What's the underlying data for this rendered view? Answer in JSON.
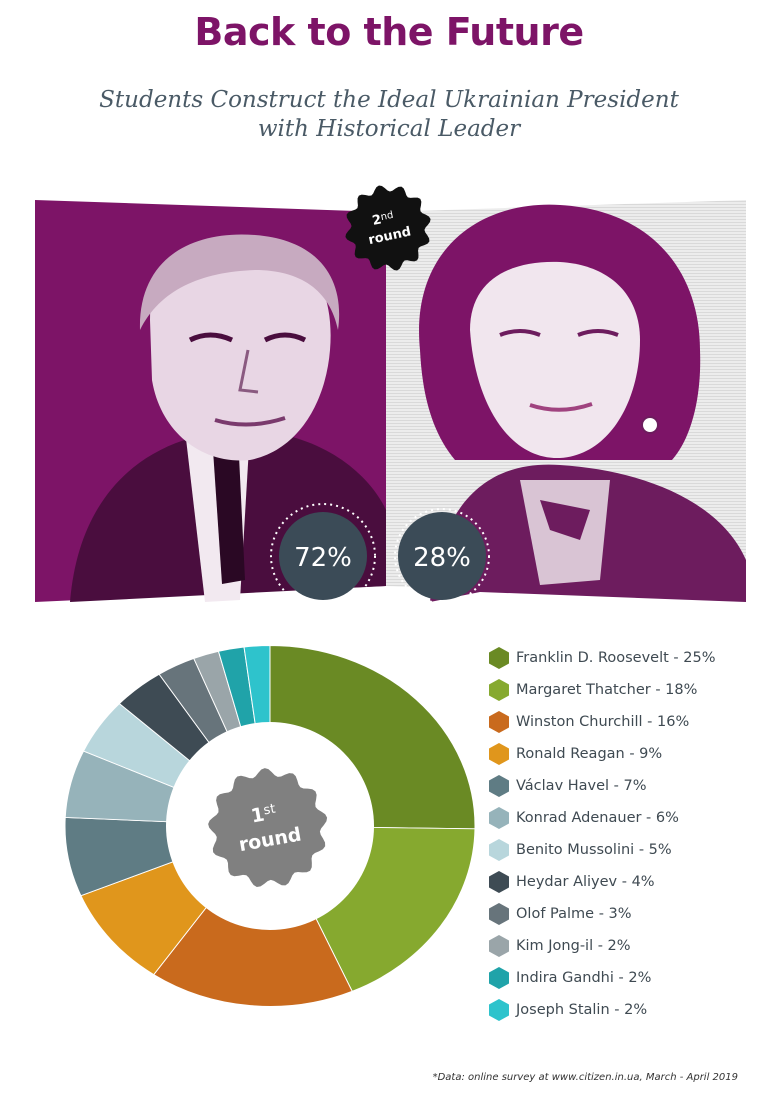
{
  "header": {
    "title": "Back to the Future",
    "subtitle_line1": "Students Construct the Ideal Ukrainian President",
    "subtitle_line2": "with Historical Leader"
  },
  "second_round": {
    "badge_number": "2",
    "badge_suffix": "nd",
    "badge_word": "round",
    "left": {
      "portrait": "Franklin D. Roosevelt portrait",
      "percent_label": "72%",
      "value": 72,
      "tint": "#7d1467"
    },
    "right": {
      "portrait": "Margaret Thatcher portrait",
      "percent_label": "28%",
      "value": 28,
      "tint": "#7d1467"
    }
  },
  "first_round": {
    "badge_number": "1",
    "badge_suffix": "st",
    "badge_word": "round"
  },
  "colors": {
    "accent": "#7d1467",
    "circle": "#3b4b57",
    "badge_round1": "#808080",
    "badge_round2": "#111111"
  },
  "chart_data": {
    "type": "pie",
    "variant": "donut",
    "title": "",
    "series": [
      {
        "name": "Franklin D. Roosevelt",
        "label": "Franklin D. Roosevelt - 25%",
        "value": 25,
        "color": "#6a8a24"
      },
      {
        "name": "Margaret Thatcher",
        "label": "Margaret Thatcher - 18%",
        "value": 18,
        "color": "#86a92f"
      },
      {
        "name": "Winston Churchill",
        "label": "Winston Churchill - 16%",
        "value": 16,
        "color": "#c96a1d"
      },
      {
        "name": "Ronald Reagan",
        "label": "Ronald Reagan - 9%",
        "value": 9,
        "color": "#e0961c"
      },
      {
        "name": "Václav Havel",
        "label": "Václav Havel - 7%",
        "value": 7,
        "color": "#5f7c84"
      },
      {
        "name": "Konrad Adenauer",
        "label": "Konrad Adenauer - 6%",
        "value": 6,
        "color": "#96b3ba"
      },
      {
        "name": "Benito Mussolini",
        "label": "Benito Mussolini - 5%",
        "value": 5,
        "color": "#b8d6dc"
      },
      {
        "name": "Heydar Aliyev",
        "label": "Heydar Aliyev - 4%",
        "value": 4,
        "color": "#3e4b54"
      },
      {
        "name": "Olof Palme",
        "label": "Olof Palme - 3%",
        "value": 3,
        "color": "#67747b"
      },
      {
        "name": "Kim Jong-il",
        "label": "Kim Jong-il - 2%",
        "value": 2,
        "color": "#9aa5a9"
      },
      {
        "name": "Indira Gandhi",
        "label": "Indira Gandhi - 2%",
        "value": 2,
        "color": "#20a3a9"
      },
      {
        "name": "Joseph Stalin",
        "label": "Joseph Stalin - 2%",
        "value": 2,
        "color": "#2ec3cc"
      }
    ],
    "legend_position": "right"
  },
  "footnote": "*Data: online survey at www.citizen.in.ua, March - April 2019"
}
